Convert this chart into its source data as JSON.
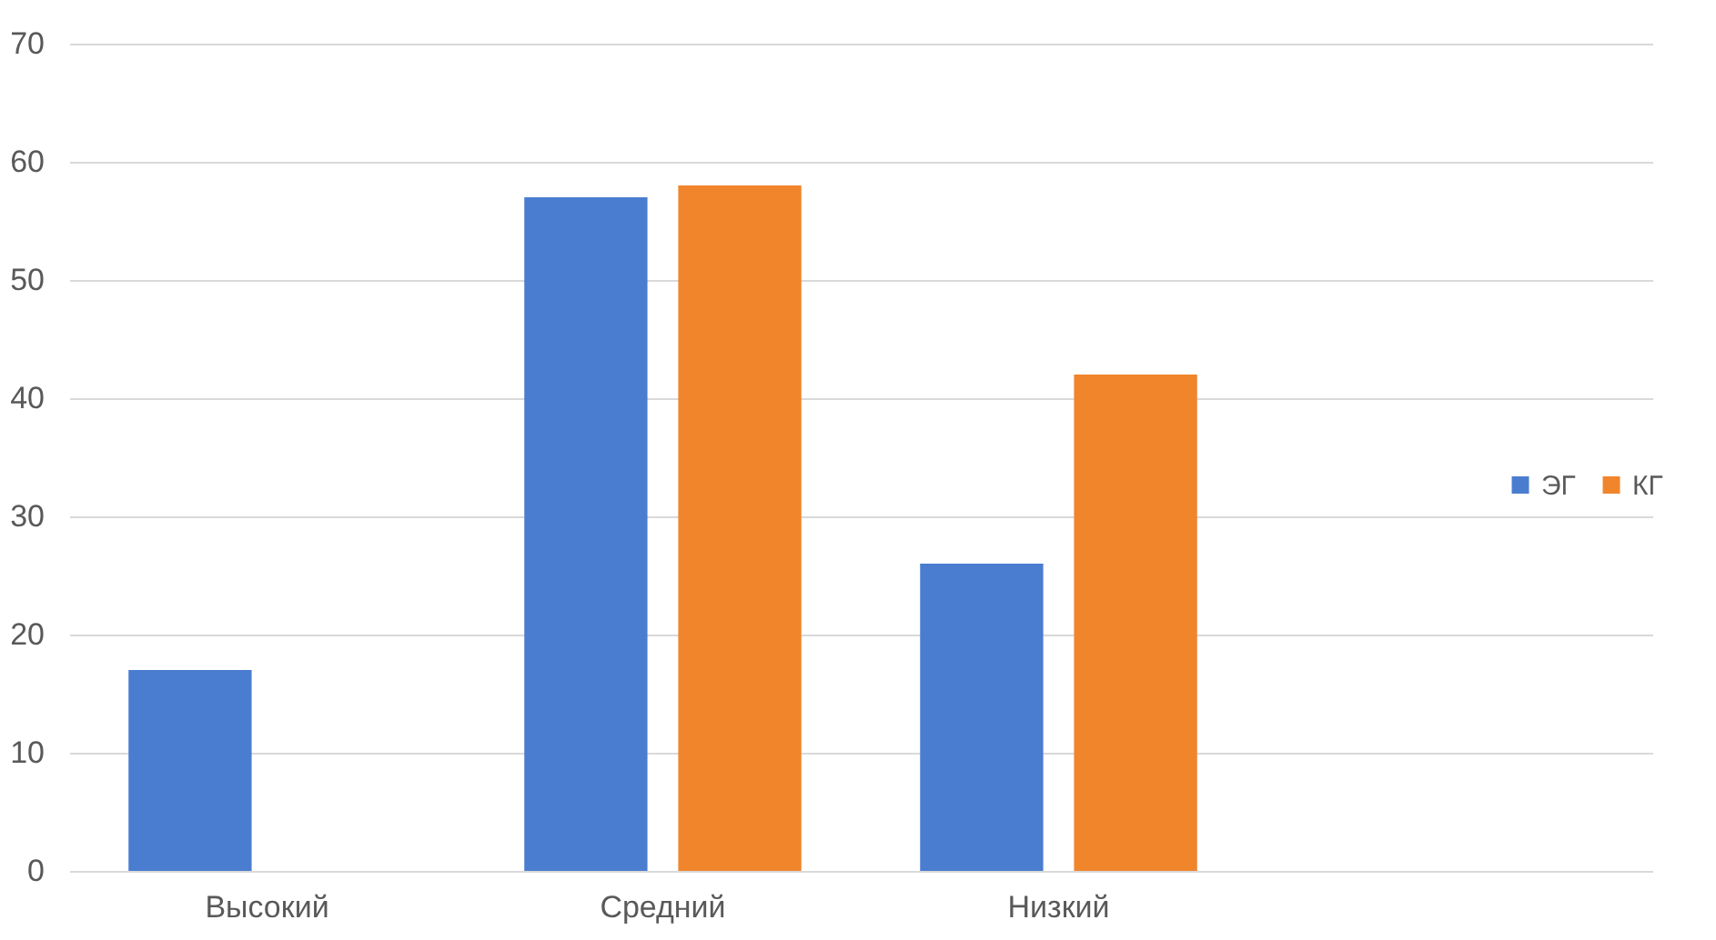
{
  "chart_data": {
    "type": "bar",
    "categories": [
      "Высокий",
      "Средний",
      "Низкий",
      null
    ],
    "series": [
      {
        "name": "ЭГ",
        "color": "#4a7dd0",
        "values": [
          17,
          57,
          26,
          null
        ]
      },
      {
        "name": "КГ",
        "color": "#f0852c",
        "values": [
          null,
          58,
          42,
          null
        ]
      }
    ],
    "ylim": [
      0,
      70
    ],
    "yticks": [
      0,
      10,
      20,
      30,
      40,
      50,
      60,
      70
    ],
    "grid": "y",
    "legend": "right"
  }
}
